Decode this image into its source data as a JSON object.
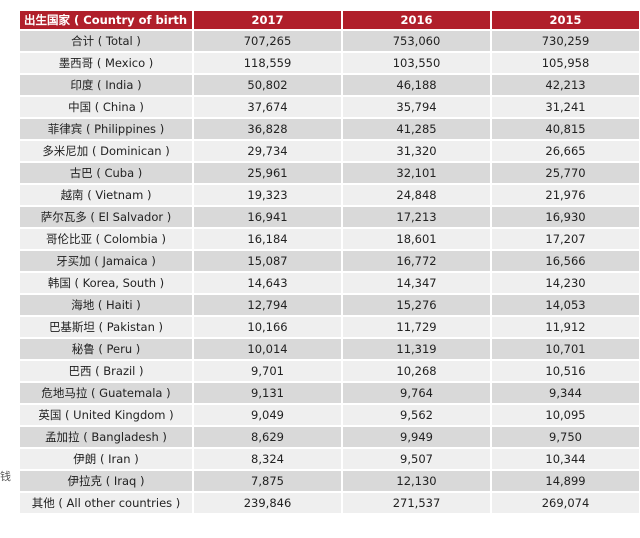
{
  "side_text": "钱",
  "table": {
    "headers": [
      "出生国家 ( Country of birth )",
      "2017",
      "2016",
      "2015"
    ],
    "rows": [
      [
        "合计 ( Total )",
        "707,265",
        "753,060",
        "730,259"
      ],
      [
        "墨西哥 ( Mexico )",
        "118,559",
        "103,550",
        "105,958"
      ],
      [
        "印度 ( India )",
        "50,802",
        "46,188",
        "42,213"
      ],
      [
        "中国 ( China )",
        "37,674",
        "35,794",
        "31,241"
      ],
      [
        "菲律宾 ( Philippines )",
        "36,828",
        "41,285",
        "40,815"
      ],
      [
        "多米尼加 ( Dominican )",
        "29,734",
        "31,320",
        "26,665"
      ],
      [
        "古巴 ( Cuba )",
        "25,961",
        "32,101",
        "25,770"
      ],
      [
        "越南 ( Vietnam )",
        "19,323",
        "24,848",
        "21,976"
      ],
      [
        "萨尔瓦多 ( El Salvador )",
        "16,941",
        "17,213",
        "16,930"
      ],
      [
        "哥伦比亚 ( Colombia )",
        "16,184",
        "18,601",
        "17,207"
      ],
      [
        "牙买加 ( Jamaica )",
        "15,087",
        "16,772",
        "16,566"
      ],
      [
        "韩国 ( Korea, South )",
        "14,643",
        "14,347",
        "14,230"
      ],
      [
        "海地 ( Haiti )",
        "12,794",
        "15,276",
        "14,053"
      ],
      [
        "巴基斯坦 ( Pakistan )",
        "10,166",
        "11,729",
        "11,912"
      ],
      [
        "秘鲁 ( Peru )",
        "10,014",
        "11,319",
        "10,701"
      ],
      [
        "巴西 ( Brazil )",
        "9,701",
        "10,268",
        "10,516"
      ],
      [
        "危地马拉 ( Guatemala )",
        "9,131",
        "9,764",
        "9,344"
      ],
      [
        "英国 ( United Kingdom )",
        "9,049",
        "9,562",
        "10,095"
      ],
      [
        "孟加拉 ( Bangladesh )",
        "8,629",
        "9,949",
        "9,750"
      ],
      [
        "伊朗 ( Iran )",
        "8,324",
        "9,507",
        "10,344"
      ],
      [
        "伊拉克 ( Iraq )",
        "7,875",
        "12,130",
        "14,899"
      ],
      [
        "其他 ( All other countries )",
        "239,846",
        "271,537",
        "269,074"
      ]
    ]
  }
}
